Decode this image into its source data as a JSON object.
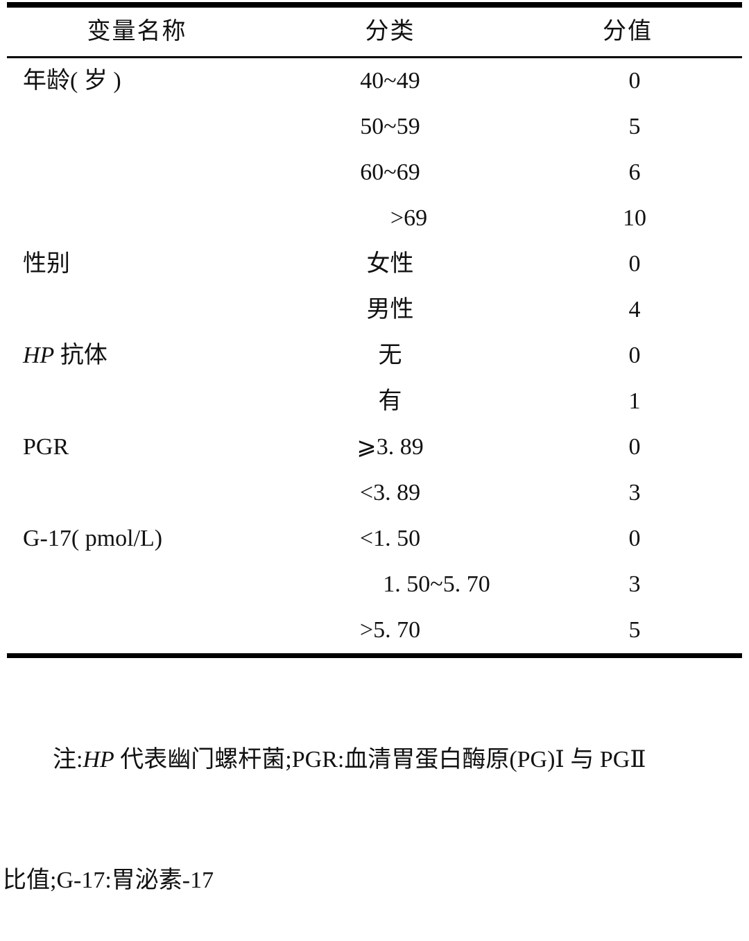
{
  "table": {
    "headers": {
      "variable": "变量名称",
      "category": "分类",
      "score": "分值"
    },
    "rows": [
      {
        "var_i": "",
        "var_r": "年龄( 岁 )",
        "cat": "40~49",
        "score": "0"
      },
      {
        "var_i": "",
        "var_r": "",
        "cat": "50~59",
        "score": "5"
      },
      {
        "var_i": "",
        "var_r": "",
        "cat": "60~69",
        "score": "6"
      },
      {
        "var_i": "",
        "var_r": "",
        "cat": ">69",
        "score": "10"
      },
      {
        "var_i": "",
        "var_r": "性别",
        "cat": "女性",
        "score": "0"
      },
      {
        "var_i": "",
        "var_r": "",
        "cat": "男性",
        "score": "4"
      },
      {
        "var_i": "HP",
        "var_r": " 抗体",
        "cat": "无",
        "score": "0"
      },
      {
        "var_i": "",
        "var_r": "",
        "cat": "有",
        "score": "1"
      },
      {
        "var_i": "",
        "var_r": "PGR",
        "cat": "⩾3. 89",
        "score": "0"
      },
      {
        "var_i": "",
        "var_r": "",
        "cat": "<3. 89",
        "score": "3"
      },
      {
        "var_i": "",
        "var_r": "G-17( pmol/L)",
        "cat": "<1. 50",
        "score": "0"
      },
      {
        "var_i": "",
        "var_r": "",
        "cat": "1. 50~5. 70",
        "score": "3"
      },
      {
        "var_i": "",
        "var_r": "",
        "cat": ">5. 70",
        "score": "5"
      }
    ]
  },
  "note": {
    "line1_prefix": "注:",
    "line1_italic": "HP",
    "line1_rest": " 代表幽门螺杆菌;PGR:血清胃蛋白酶原(PG)Ⅰ 与 PGⅡ",
    "line2": "比值;G-17:胃泌素-17"
  },
  "colors": {
    "background": "#ffffff",
    "text": "#111111",
    "rule": "#000000"
  }
}
